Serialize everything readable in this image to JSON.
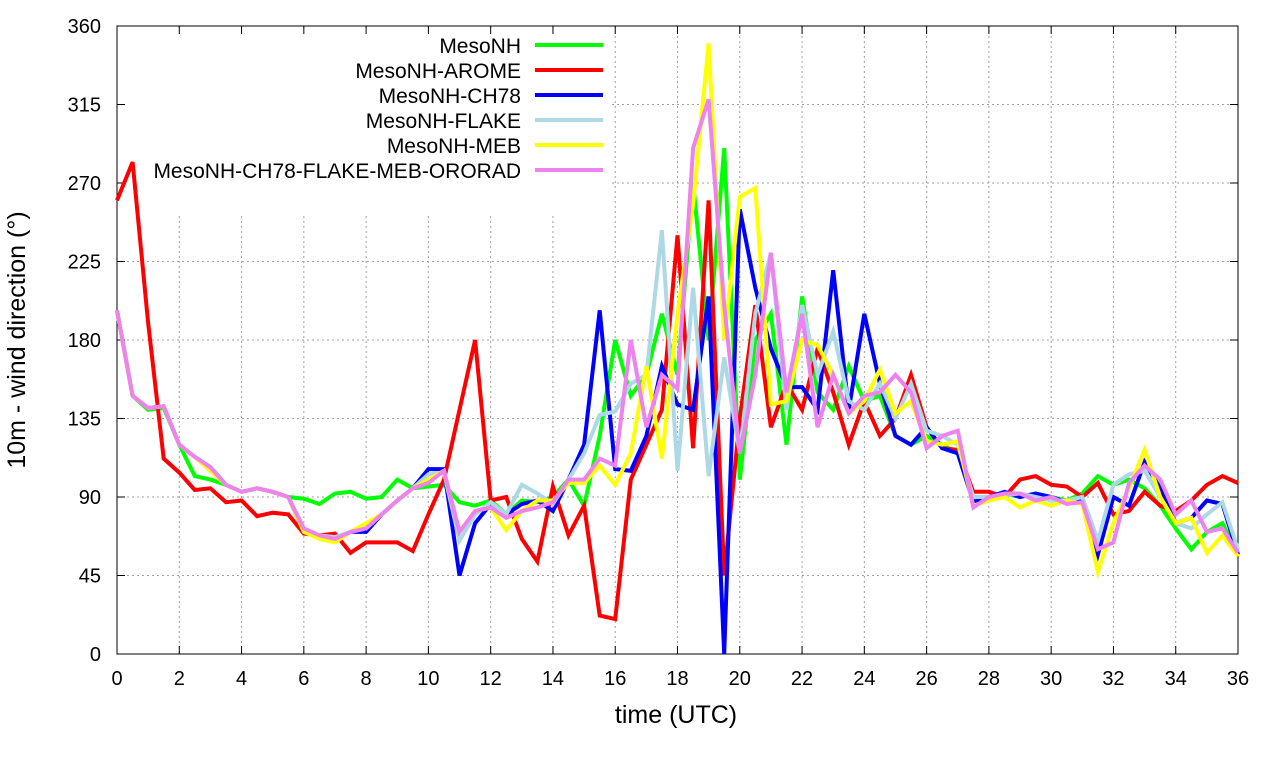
{
  "chart_data": {
    "type": "line",
    "title": "",
    "xlabel": "time (UTC)",
    "ylabel": "10m - wind direction (°)",
    "xlim": [
      0,
      36
    ],
    "ylim": [
      0,
      360
    ],
    "xticks": [
      0,
      2,
      4,
      6,
      8,
      10,
      12,
      14,
      16,
      18,
      20,
      22,
      24,
      26,
      28,
      30,
      32,
      34,
      36
    ],
    "yticks": [
      0,
      45,
      90,
      135,
      180,
      225,
      270,
      315,
      360
    ],
    "grid": true,
    "legend_position": "top-left",
    "x_start": 0,
    "x_step": 0.5,
    "series": [
      {
        "name": "MesoNH",
        "color": "#00ff00",
        "values": [
          197,
          148,
          140,
          141,
          120,
          102,
          100,
          97,
          93,
          95,
          93,
          90,
          89,
          86,
          92,
          93,
          89,
          90,
          100,
          95,
          96,
          97,
          87,
          85,
          88,
          80,
          88,
          87,
          90,
          100,
          85,
          125,
          180,
          148,
          160,
          195,
          160,
          270,
          180,
          290,
          100,
          180,
          195,
          120,
          205,
          150,
          140,
          165,
          145,
          148,
          125,
          120,
          125,
          120,
          115,
          88,
          90,
          92,
          90,
          92,
          90,
          88,
          92,
          102,
          97,
          100,
          95,
          85,
          72,
          60,
          70,
          75,
          57
        ]
      },
      {
        "name": "MesoNH-AROME",
        "color": "#ff0000",
        "values": [
          260,
          282,
          190,
          112,
          104,
          94,
          95,
          87,
          88,
          79,
          81,
          80,
          69,
          68,
          69,
          58,
          64,
          64,
          64,
          59,
          80,
          100,
          140,
          180,
          88,
          90,
          66,
          53,
          96,
          68,
          85,
          22,
          20,
          100,
          120,
          140,
          240,
          118,
          260,
          45,
          135,
          200,
          130,
          155,
          140,
          175,
          150,
          120,
          145,
          125,
          135,
          160,
          130,
          118,
          117,
          93,
          93,
          90,
          100,
          102,
          97,
          96,
          90,
          98,
          80,
          82,
          93,
          85,
          82,
          88,
          97,
          102,
          98
        ]
      },
      {
        "name": "MesoNH-CH78",
        "color": "#0000ff",
        "values": [
          197,
          148,
          141,
          142,
          120,
          113,
          107,
          97,
          93,
          95,
          93,
          90,
          70,
          68,
          65,
          70,
          70,
          80,
          88,
          95,
          106,
          106,
          45,
          75,
          86,
          80,
          86,
          88,
          82,
          100,
          120,
          197,
          106,
          105,
          125,
          165,
          143,
          140,
          205,
          0,
          255,
          210,
          175,
          153,
          153,
          140,
          220,
          140,
          195,
          155,
          125,
          120,
          130,
          118,
          115,
          87,
          90,
          93,
          90,
          92,
          90,
          87,
          88,
          57,
          90,
          85,
          110,
          95,
          75,
          78,
          88,
          86,
          57
        ]
      },
      {
        "name": "MesoNH-FLAKE",
        "color": "#add8e6",
        "values": [
          197,
          148,
          141,
          142,
          120,
          113,
          105,
          97,
          93,
          95,
          93,
          90,
          72,
          68,
          67,
          70,
          72,
          80,
          88,
          95,
          103,
          104,
          65,
          80,
          87,
          80,
          97,
          92,
          86,
          100,
          115,
          137,
          139,
          155,
          160,
          243,
          105,
          210,
          102,
          170,
          115,
          195,
          230,
          140,
          200,
          160,
          185,
          145,
          140,
          155,
          135,
          155,
          128,
          125,
          120,
          90,
          90,
          91,
          92,
          90,
          88,
          88,
          90,
          65,
          97,
          103,
          105,
          90,
          75,
          72,
          80,
          87,
          60
        ]
      },
      {
        "name": "MesoNH-MEB",
        "color": "#ffff00",
        "values": [
          197,
          148,
          141,
          142,
          120,
          113,
          105,
          97,
          93,
          95,
          93,
          90,
          70,
          66,
          64,
          70,
          75,
          80,
          88,
          95,
          100,
          105,
          70,
          82,
          84,
          71,
          82,
          88,
          88,
          98,
          98,
          108,
          97,
          115,
          165,
          112,
          195,
          258,
          350,
          180,
          262,
          267,
          143,
          145,
          180,
          177,
          160,
          138,
          145,
          163,
          138,
          145,
          122,
          120,
          122,
          85,
          88,
          90,
          84,
          88,
          85,
          88,
          86,
          47,
          75,
          95,
          117,
          90,
          75,
          78,
          58,
          68,
          56
        ]
      },
      {
        "name": "MesoNH-CH78-FLAKE-MEB-ORORAD",
        "color": "#ee82ee",
        "values": [
          197,
          148,
          141,
          142,
          120,
          113,
          107,
          97,
          93,
          95,
          93,
          90,
          72,
          68,
          66,
          70,
          72,
          80,
          88,
          95,
          98,
          105,
          70,
          82,
          84,
          78,
          82,
          84,
          87,
          100,
          100,
          112,
          108,
          180,
          130,
          160,
          152,
          290,
          318,
          200,
          115,
          160,
          230,
          150,
          195,
          130,
          160,
          138,
          148,
          150,
          160,
          150,
          118,
          125,
          128,
          84,
          90,
          92,
          92,
          88,
          90,
          86,
          87,
          60,
          64,
          98,
          108,
          100,
          80,
          88,
          70,
          72,
          58
        ]
      }
    ]
  }
}
